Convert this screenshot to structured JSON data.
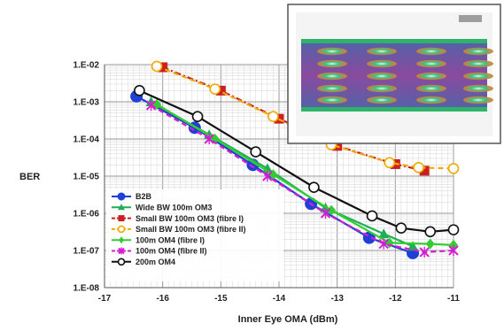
{
  "chart_data": {
    "type": "line",
    "title": "",
    "xlabel": "Inner Eye OMA (dBm)",
    "ylabel": "BER",
    "xlim": [
      -17,
      -11
    ],
    "ylim_exp": [
      -8,
      -2
    ],
    "y_scale": "log",
    "x_ticks": [
      "-17",
      "-16",
      "-15",
      "-14",
      "-13",
      "-12",
      "-11"
    ],
    "y_ticks": [
      "1.E-08",
      "1.E-07",
      "1.E-06",
      "1.E-05",
      "1.E-04",
      "1.E-03",
      "1.E-02"
    ],
    "grid": true,
    "legend_position": "bottom-left",
    "series": [
      {
        "name": "B2B",
        "color": "#1f3fd6",
        "marker": "circle-filled",
        "dash": "solid",
        "x": [
          -16.45,
          -15.45,
          -14.45,
          -13.45,
          -12.45,
          -11.7
        ],
        "y": [
          0.0014,
          0.0002,
          2e-05,
          1.8e-06,
          2.2e-07,
          8.5e-08
        ]
      },
      {
        "name": "Wide BW 100m OM3",
        "color": "#1fae55",
        "marker": "triangle",
        "dash": "solid",
        "x": [
          -16.2,
          -15.2,
          -14.2,
          -13.2,
          -12.2,
          -11.7
        ],
        "y": [
          0.001,
          0.00013,
          1.6e-05,
          1.4e-06,
          2.8e-07,
          1.3e-07
        ]
      },
      {
        "name": "Small BW 100m OM3 (fibre I)",
        "color": "#cc2020",
        "marker": "square",
        "dash": "dashdot",
        "x": [
          -16.0,
          -15.0,
          -14.0,
          -13.0,
          -12.0,
          -11.5
        ],
        "y": [
          0.0085,
          0.002,
          0.00035,
          6.5e-05,
          2.1e-05,
          1.4e-05
        ]
      },
      {
        "name": "Small BW 100m OM3 (fibre II)",
        "color": "#f2a900",
        "marker": "circle-open",
        "dash": "dashed",
        "x": [
          -16.1,
          -15.1,
          -14.1,
          -13.1,
          -12.1,
          -11.6,
          -11.0
        ],
        "y": [
          0.009,
          0.0022,
          0.0004,
          7e-05,
          2.3e-05,
          1.7e-05,
          1.6e-05
        ]
      },
      {
        "name": "100m OM4 (fibre I)",
        "color": "#33cc33",
        "marker": "diamond",
        "dash": "solid",
        "x": [
          -16.1,
          -15.1,
          -14.1,
          -13.1,
          -12.1,
          -11.4,
          -11.0
        ],
        "y": [
          0.00085,
          0.0001,
          1.1e-05,
          1.2e-06,
          1.6e-07,
          1.5e-07,
          1.4e-07
        ]
      },
      {
        "name": "100m OM4 (fibre II)",
        "color": "#d21fd2",
        "marker": "cross",
        "dash": "dashed",
        "x": [
          -16.2,
          -15.2,
          -14.2,
          -13.2,
          -12.2,
          -11.5,
          -11.0
        ],
        "y": [
          0.0008,
          0.0001,
          1e-05,
          1e-06,
          1.5e-07,
          9e-08,
          1e-07
        ]
      },
      {
        "name": "200m OM4",
        "color": "#111111",
        "marker": "circle-open",
        "dash": "solid",
        "x": [
          -16.4,
          -15.4,
          -14.4,
          -13.4,
          -12.4,
          -11.9,
          -11.4,
          -11.0
        ],
        "y": [
          0.002,
          0.0004,
          4.5e-05,
          5e-06,
          8.5e-07,
          4e-07,
          3.2e-07,
          3.6e-07
        ]
      }
    ]
  }
}
